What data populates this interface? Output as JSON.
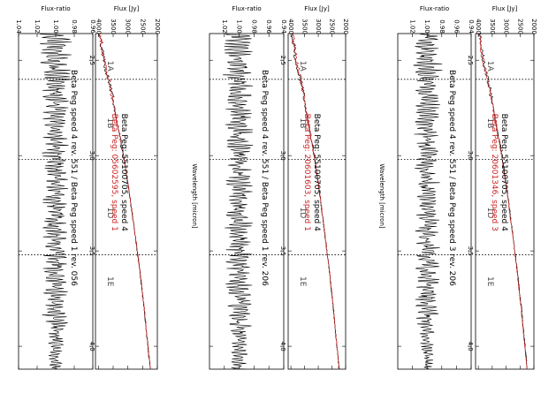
{
  "figure": {
    "xlabel": "Wavelength [micron]",
    "xticks": [
      "2.5",
      "3.0",
      "3.5",
      "4.0"
    ],
    "xlim": [
      2.36,
      4.12
    ],
    "band_boundaries": [
      2.6,
      3.02,
      3.52
    ],
    "band_labels": [
      {
        "label": "1A",
        "x": 2.53
      },
      {
        "label": "1B",
        "x": 2.83
      },
      {
        "label": "1D",
        "x": 3.3
      },
      {
        "label": "1E",
        "x": 3.66
      }
    ],
    "colors": {
      "reference": "#000000",
      "comparison": "#cc2222",
      "ratio": "#000000"
    }
  },
  "chart_data": [
    {
      "type": "line",
      "panel": "flux",
      "ylabel": "Flux [Jy]",
      "ylim": [
        2000,
        4100
      ],
      "yticks": [
        "2000",
        "2500",
        "3000",
        "3500",
        "4000"
      ],
      "legend": [
        "Beta Peg: 55100705, speed 4",
        "Beta Peg: 20601346, speed 3"
      ],
      "x": [
        2.36,
        2.5,
        2.6,
        2.8,
        3.0,
        3.2,
        3.4,
        3.6,
        3.8,
        4.0,
        4.12
      ],
      "series": [
        {
          "name": "Beta Peg: 55100705, speed 4",
          "values": [
            3950,
            3820,
            3650,
            3400,
            3150,
            2950,
            2770,
            2600,
            2450,
            2320,
            2240
          ]
        },
        {
          "name": "Beta Peg: 20601346, speed 3",
          "values": [
            3950,
            3830,
            3660,
            3410,
            3160,
            2960,
            2780,
            2610,
            2460,
            2330,
            2250
          ]
        }
      ]
    },
    {
      "type": "line",
      "panel": "ratio",
      "ylabel": "Flux-ratio",
      "ylim": [
        0.94,
        1.04
      ],
      "yticks": [
        "0.94",
        "0.96",
        "0.98",
        "1.00",
        "1.02"
      ],
      "annotation": "Beta Peg speed 4 rev. 551 / Beta Peg speed 3 rev. 206",
      "x": [
        2.36,
        2.6,
        3.0,
        3.5,
        4.0,
        4.12
      ],
      "series": [
        {
          "name": "",
          "values": [
            1.0,
            1.0,
            1.0,
            1.0,
            1.0,
            1.0
          ],
          "amplitude": 0.018
        }
      ]
    },
    {
      "type": "line",
      "panel": "flux",
      "ylabel": "Flux [Jy]",
      "ylim": [
        2000,
        4100
      ],
      "yticks": [
        "2000",
        "2500",
        "3000",
        "3500",
        "4000"
      ],
      "legend": [
        "Beta Peg: 55100705, speed 4",
        "Beta Peg: 20601603, speed 1"
      ],
      "x": [
        2.36,
        2.5,
        2.6,
        2.8,
        3.0,
        3.2,
        3.4,
        3.6,
        3.8,
        4.0,
        4.12
      ],
      "series": [
        {
          "name": "Beta Peg: 55100705, speed 4",
          "values": [
            3950,
            3820,
            3650,
            3400,
            3150,
            2950,
            2770,
            2600,
            2450,
            2320,
            2240
          ]
        },
        {
          "name": "Beta Peg: 20601603, speed 1",
          "values": [
            3940,
            3810,
            3640,
            3395,
            3145,
            2945,
            2765,
            2595,
            2445,
            2315,
            2235
          ]
        }
      ]
    },
    {
      "type": "line",
      "panel": "ratio",
      "ylabel": "Flux-ratio",
      "ylim": [
        0.94,
        1.04
      ],
      "yticks": [
        "0.94",
        "0.96",
        "0.98",
        "1.00",
        "1.02"
      ],
      "annotation": "Beta Peg speed 4 rev. 551 / Beta Peg speed 1 rev. 206",
      "x": [
        2.36,
        2.6,
        3.0,
        3.5,
        4.0,
        4.12
      ],
      "series": [
        {
          "name": "",
          "values": [
            1.0,
            1.0,
            1.0,
            1.0,
            1.0,
            1.0
          ],
          "amplitude": 0.02
        }
      ]
    },
    {
      "type": "line",
      "panel": "flux",
      "ylabel": "Flux [Jy]",
      "ylim": [
        2000,
        4100
      ],
      "yticks": [
        "2000",
        "2500",
        "3000",
        "3500",
        "4000"
      ],
      "legend": [
        "Beta Peg: 55100705, speed 4",
        "Beta Peg: 05602595, speed 1"
      ],
      "x": [
        2.36,
        2.5,
        2.6,
        2.8,
        3.0,
        3.2,
        3.4,
        3.6,
        3.8,
        4.0,
        4.12
      ],
      "series": [
        {
          "name": "Beta Peg: 55100705, speed 4",
          "values": [
            3950,
            3820,
            3650,
            3400,
            3150,
            2950,
            2770,
            2600,
            2450,
            2320,
            2240
          ]
        },
        {
          "name": "Beta Peg: 05602595, speed 1",
          "values": [
            3940,
            3810,
            3640,
            3395,
            3145,
            2945,
            2765,
            2595,
            2445,
            2315,
            2235
          ]
        }
      ]
    },
    {
      "type": "line",
      "panel": "ratio",
      "ylabel": "Flux-ratio",
      "ylim": [
        0.96,
        1.04
      ],
      "yticks": [
        "0.96",
        "0.98",
        "1.00",
        "1.02",
        "1.04"
      ],
      "annotation": "Beta Peg speed 4 rev. 551 / Beta Peg speed 1 rev. 056",
      "x": [
        2.36,
        2.6,
        3.0,
        3.5,
        4.0,
        4.12
      ],
      "series": [
        {
          "name": "",
          "values": [
            1.0,
            1.0,
            1.0,
            1.0,
            1.0,
            1.0
          ],
          "amplitude": 0.015
        }
      ]
    }
  ]
}
